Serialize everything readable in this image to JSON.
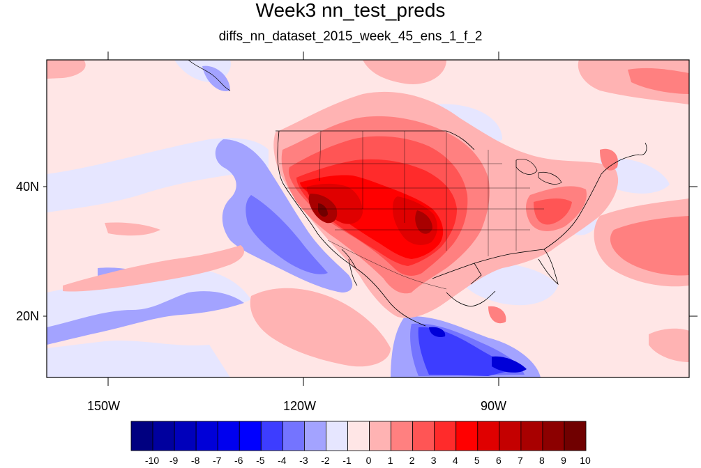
{
  "title": "Week3 nn_test_preds",
  "subtitle": "diffs_nn_dataset_2015_week_45_ens_1_f_2",
  "axes": {
    "x_labels": [
      "150W",
      "120W",
      "90W"
    ],
    "y_labels": [
      "40N",
      "20N"
    ]
  },
  "colorbar": {
    "labels": [
      "-10",
      "-9",
      "-8",
      "-7",
      "-6",
      "-5",
      "-4",
      "-3",
      "-2",
      "-1",
      "0",
      "1",
      "2",
      "3",
      "4",
      "5",
      "6",
      "7",
      "8",
      "9",
      "10"
    ],
    "colors": [
      "#000080",
      "#00009e",
      "#0000bb",
      "#0000d8",
      "#0000ef",
      "#0000ff",
      "#3d3dff",
      "#7474ff",
      "#a3a3ff",
      "#e6e6ff",
      "#ffe6e6",
      "#ffb3b3",
      "#ff8080",
      "#ff5555",
      "#ff2b2b",
      "#ff0000",
      "#e00000",
      "#c40000",
      "#a80000",
      "#8c0000",
      "#700000"
    ]
  }
}
